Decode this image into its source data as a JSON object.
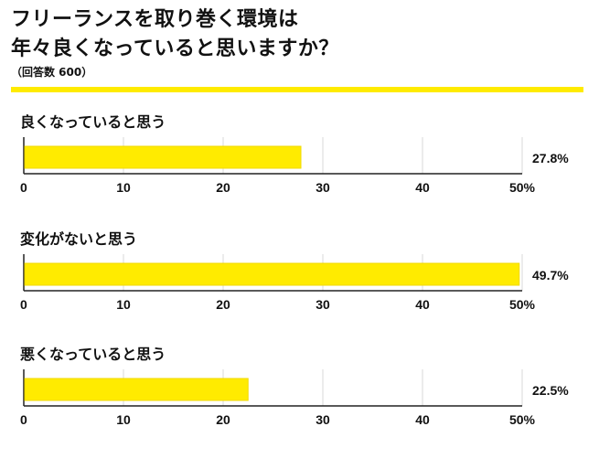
{
  "header": {
    "title_line1": "フリーランスを取り巻く環境は",
    "title_line2": "年々良くなっていると思いますか？",
    "subtitle": "（回答数 600）"
  },
  "colors": {
    "accent": "#FFEB00",
    "bar": "#FFEB00",
    "bar_border": "#F2DA00",
    "grid": "#d9d9d9",
    "axis": "#222222",
    "text": "#111111"
  },
  "chart_data": [
    {
      "type": "bar",
      "orientation": "horizontal",
      "title": "良くなっていると思う",
      "categories": [
        "良くなっていると思う"
      ],
      "values": [
        27.8
      ],
      "value_label": "27.8%",
      "ticks": [
        "0",
        "10",
        "20",
        "30",
        "40",
        "50%"
      ],
      "xlim": [
        0,
        50
      ],
      "grid": true
    },
    {
      "type": "bar",
      "orientation": "horizontal",
      "title": "変化がないと思う",
      "categories": [
        "変化がないと思う"
      ],
      "values": [
        49.7
      ],
      "value_label": "49.7%",
      "ticks": [
        "0",
        "10",
        "20",
        "30",
        "40",
        "50%"
      ],
      "xlim": [
        0,
        50
      ],
      "grid": true
    },
    {
      "type": "bar",
      "orientation": "horizontal",
      "title": "悪くなっていると思う",
      "categories": [
        "悪くなっていると思う"
      ],
      "values": [
        22.5
      ],
      "value_label": "22.5%",
      "ticks": [
        "0",
        "10",
        "20",
        "30",
        "40",
        "50%"
      ],
      "xlim": [
        0,
        50
      ],
      "grid": true
    }
  ]
}
